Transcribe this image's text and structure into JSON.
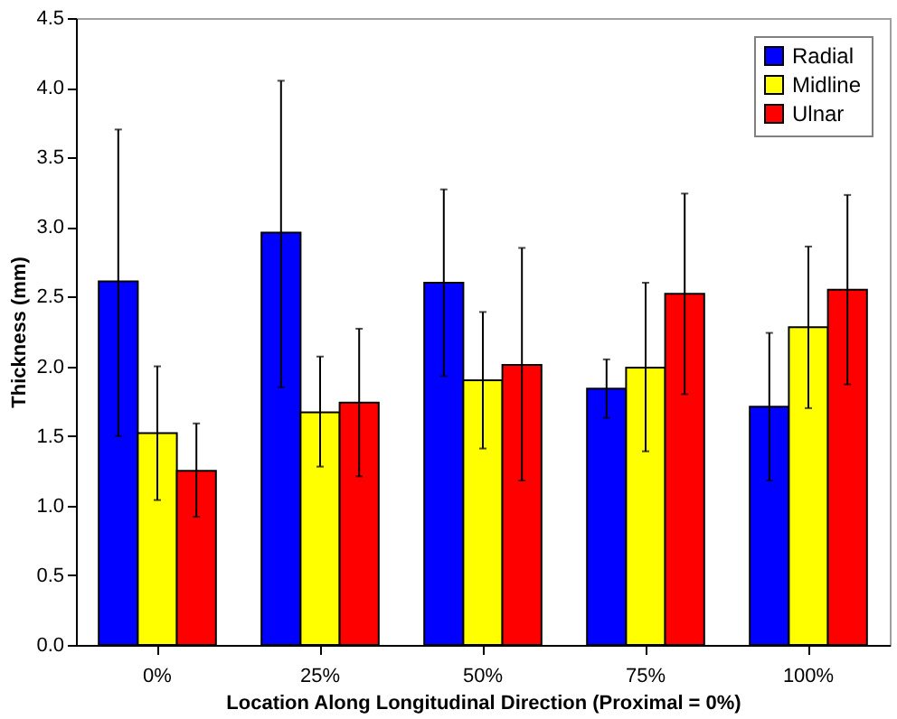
{
  "chart_data": {
    "type": "bar",
    "xlabel": "Location Along Longitudinal Direction (Proximal = 0%)",
    "ylabel": "Thickness (mm)",
    "categories": [
      "0%",
      "25%",
      "50%",
      "75%",
      "100%"
    ],
    "series": [
      {
        "name": "Radial",
        "color": "#0000ff",
        "values": [
          2.61,
          2.96,
          2.6,
          1.84,
          1.71
        ],
        "errors": [
          [
            1.5,
            3.7
          ],
          [
            1.85,
            4.05
          ],
          [
            1.93,
            3.27
          ],
          [
            1.63,
            2.05
          ],
          [
            1.18,
            2.24
          ]
        ]
      },
      {
        "name": "Midline",
        "color": "#ffff00",
        "values": [
          1.52,
          1.67,
          1.9,
          1.99,
          2.28
        ],
        "errors": [
          [
            1.04,
            2.0
          ],
          [
            1.28,
            2.07
          ],
          [
            1.41,
            2.39
          ],
          [
            1.39,
            2.6
          ],
          [
            1.7,
            2.86
          ]
        ]
      },
      {
        "name": "Ulnar",
        "color": "#ff0000",
        "values": [
          1.25,
          1.74,
          2.01,
          2.52,
          2.55
        ],
        "errors": [
          [
            0.92,
            1.59
          ],
          [
            1.21,
            2.27
          ],
          [
            1.18,
            2.85
          ],
          [
            1.8,
            3.24
          ],
          [
            1.87,
            3.23
          ]
        ]
      }
    ],
    "ylim": [
      0,
      4.5
    ],
    "yticks": [
      {
        "value": 0,
        "label": "0.0"
      },
      0.5,
      {
        "value": 1,
        "label": "1.0"
      },
      1.5,
      {
        "value": 2,
        "label": "2.0"
      },
      2.5,
      {
        "value": 3,
        "label": "3.0"
      },
      3.5,
      {
        "value": 4,
        "label": "4.0"
      },
      4.5
    ],
    "grid": false,
    "legend": "top right"
  }
}
